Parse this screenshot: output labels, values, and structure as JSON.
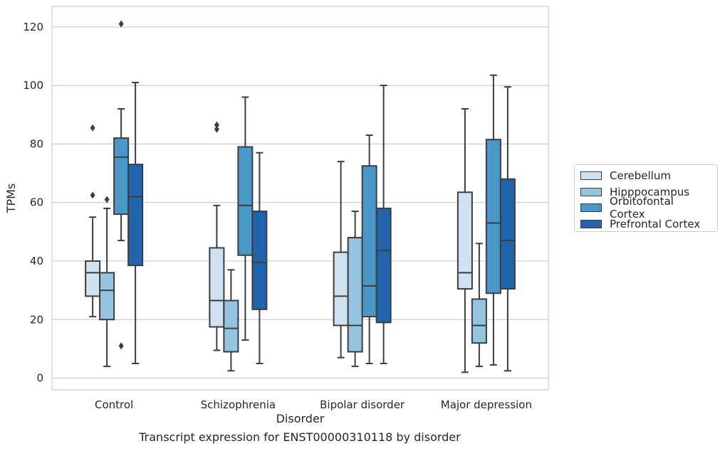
{
  "caption": "Transcript expression for ENST00000310118 by disorder",
  "chart_data": {
    "type": "box",
    "title": "",
    "xlabel": "Disorder",
    "ylabel": "TPMs",
    "ylim": [
      -4,
      127
    ],
    "yticks": [
      0,
      20,
      40,
      60,
      80,
      100,
      120
    ],
    "grid": "horizontal",
    "legend_position": "right",
    "categories": [
      "Control",
      "Schizophrenia",
      "Bipolar disorder",
      "Major depression"
    ],
    "series": [
      {
        "name": "Cerebellum",
        "color": "#d0e1f2",
        "boxes": [
          {
            "whisker_low": 21,
            "q1": 28,
            "median": 36,
            "q3": 40,
            "whisker_high": 55,
            "outliers": [
              62.5,
              85.5
            ]
          },
          {
            "whisker_low": 9.5,
            "q1": 17.5,
            "median": 26.5,
            "q3": 44.5,
            "whisker_high": 59,
            "outliers": [
              85,
              86.5
            ]
          },
          {
            "whisker_low": 7,
            "q1": 18,
            "median": 28,
            "q3": 43,
            "whisker_high": 74,
            "outliers": []
          },
          {
            "whisker_low": 2,
            "q1": 30.5,
            "median": 36,
            "q3": 63.5,
            "whisker_high": 92,
            "outliers": []
          }
        ]
      },
      {
        "name": "Hipppocampus",
        "color": "#94c4df",
        "boxes": [
          {
            "whisker_low": 4,
            "q1": 20,
            "median": 30,
            "q3": 36,
            "whisker_high": 58,
            "outliers": [
              61
            ]
          },
          {
            "whisker_low": 2.5,
            "q1": 9,
            "median": 17,
            "q3": 26.5,
            "whisker_high": 37,
            "outliers": []
          },
          {
            "whisker_low": 4,
            "q1": 9,
            "median": 18,
            "q3": 48,
            "whisker_high": 57,
            "outliers": []
          },
          {
            "whisker_low": 4,
            "q1": 12,
            "median": 18,
            "q3": 27,
            "whisker_high": 46,
            "outliers": []
          }
        ]
      },
      {
        "name": "Orbitofontal Cortex",
        "color": "#4a98c9",
        "boxes": [
          {
            "whisker_low": 47,
            "q1": 56,
            "median": 75.5,
            "q3": 82,
            "whisker_high": 92,
            "outliers": [
              11,
              121
            ]
          },
          {
            "whisker_low": 13,
            "q1": 42,
            "median": 59,
            "q3": 79,
            "whisker_high": 96,
            "outliers": []
          },
          {
            "whisker_low": 5,
            "q1": 21,
            "median": 31.5,
            "q3": 72.5,
            "whisker_high": 83,
            "outliers": []
          },
          {
            "whisker_low": 4.5,
            "q1": 29,
            "median": 53,
            "q3": 81.5,
            "whisker_high": 103.5,
            "outliers": []
          }
        ]
      },
      {
        "name": "Prefrontal Cortex",
        "color": "#2164ab",
        "boxes": [
          {
            "whisker_low": 5,
            "q1": 38.5,
            "median": 62,
            "q3": 73,
            "whisker_high": 101,
            "outliers": []
          },
          {
            "whisker_low": 5,
            "q1": 23.5,
            "median": 39.5,
            "q3": 57,
            "whisker_high": 77,
            "outliers": []
          },
          {
            "whisker_low": 5,
            "q1": 19,
            "median": 43.5,
            "q3": 58,
            "whisker_high": 100,
            "outliers": []
          },
          {
            "whisker_low": 2.5,
            "q1": 30.5,
            "median": 47,
            "q3": 68,
            "whisker_high": 99.5,
            "outliers": []
          }
        ]
      }
    ]
  }
}
